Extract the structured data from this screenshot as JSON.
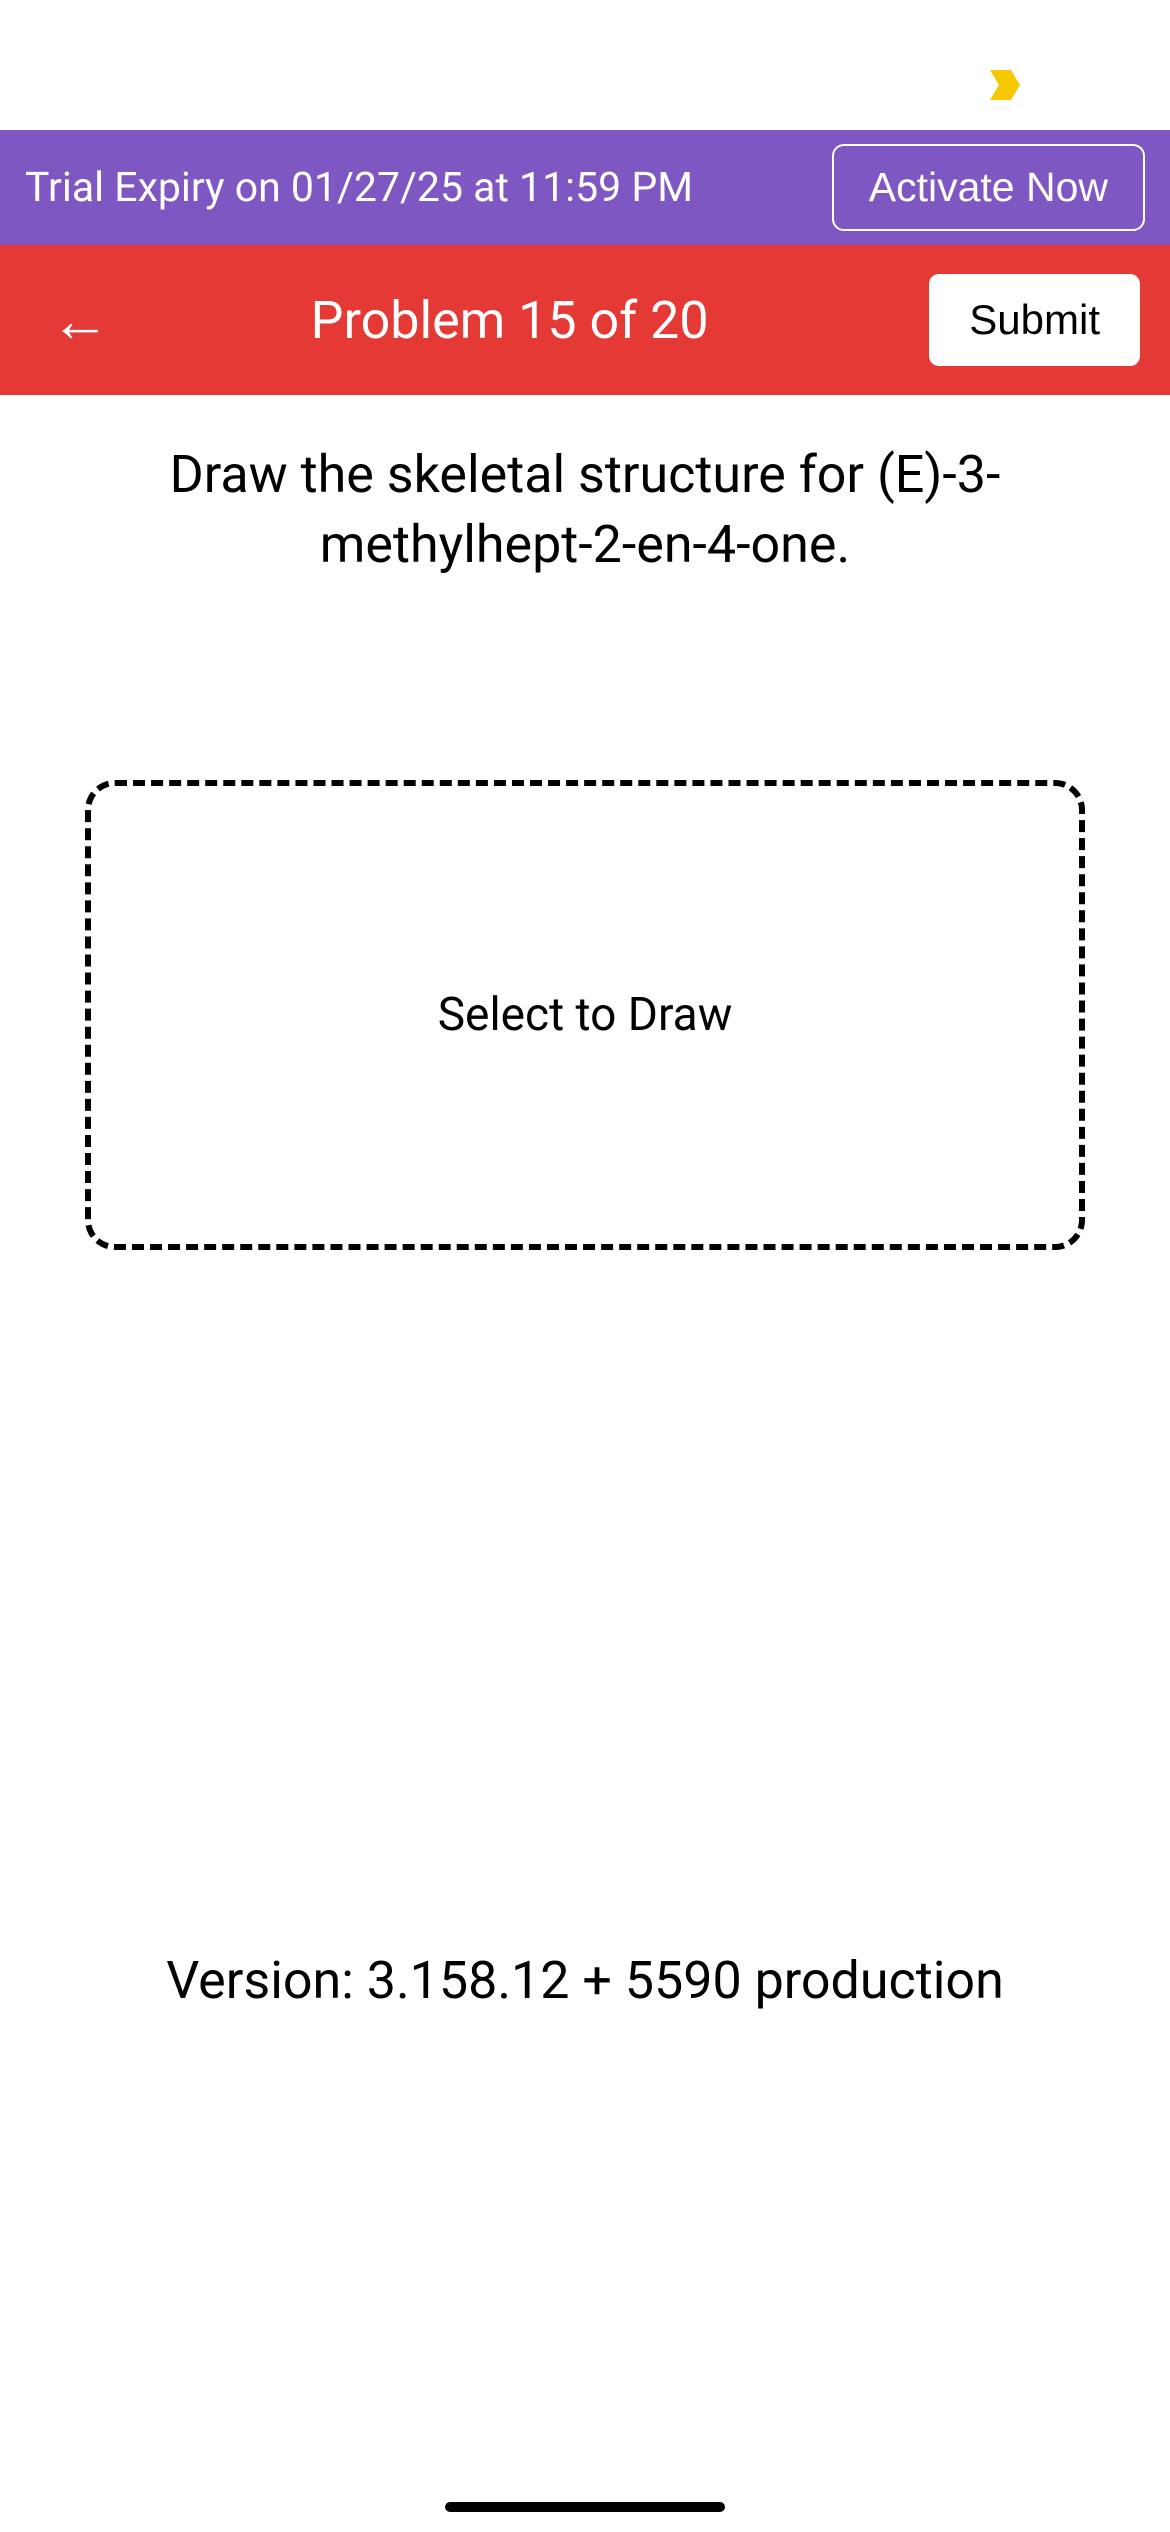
{
  "colors": {
    "trial_banner_bg": "#7e57c2",
    "header_bg": "#e53935",
    "white": "#ffffff",
    "black": "#000000",
    "status_icon": "#f5c800"
  },
  "trial_banner": {
    "text": "Trial Expiry on 01/27/25 at 11:59 PM",
    "activate_label": "Activate Now"
  },
  "header": {
    "back_icon": "←",
    "title": "Problem 15 of 20",
    "submit_label": "Submit"
  },
  "question": {
    "text": "Draw the skeletal structure for (E)-3-methylhept-2-en-4-one."
  },
  "draw_area": {
    "placeholder": "Select to Draw"
  },
  "footer": {
    "version": "Version: 3.158.12 + 5590 production"
  }
}
